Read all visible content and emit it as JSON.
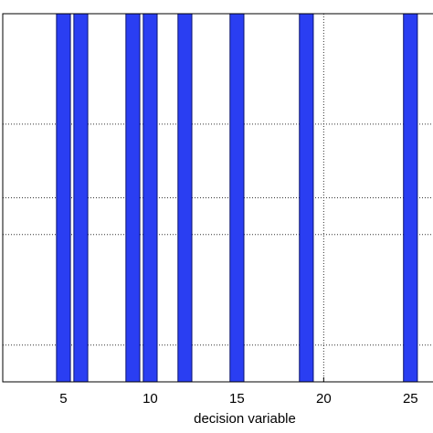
{
  "chart_data": {
    "type": "bar",
    "x": [
      5,
      6,
      9,
      10,
      12,
      15,
      19,
      25
    ],
    "values": [
      1,
      1,
      1,
      1,
      1,
      1,
      1,
      1
    ],
    "color": "#2a3ef2",
    "xlabel": "decision variable",
    "xlim": [
      1.5,
      26.3
    ],
    "xticks": [
      5,
      10,
      15,
      20,
      25
    ],
    "ylim": [
      0,
      1
    ],
    "yticks": [
      0.1,
      0.4,
      0.5,
      0.7
    ],
    "grid": true
  }
}
